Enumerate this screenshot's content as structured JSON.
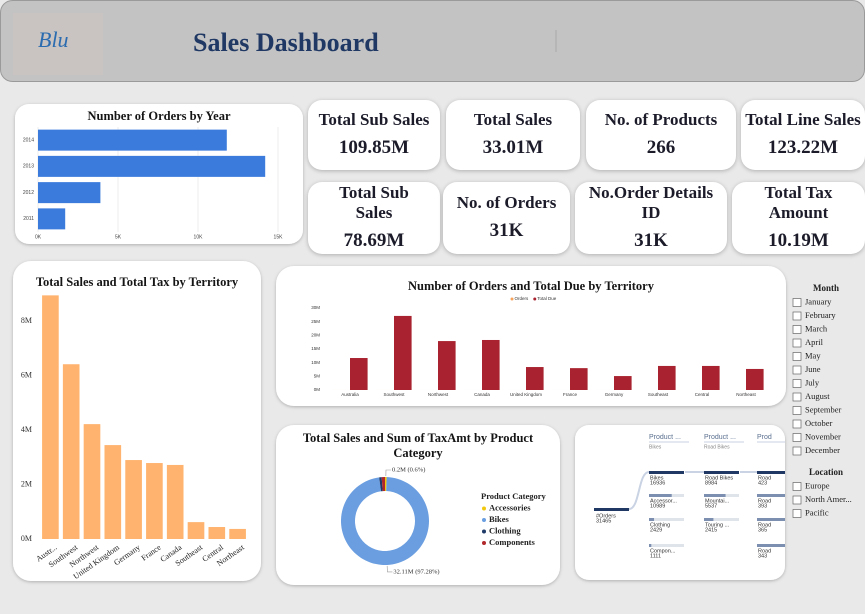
{
  "header": {
    "logo": "Blu",
    "title": "Sales Dashboard"
  },
  "kpis": [
    {
      "label": "Total Sub Sales",
      "value": "109.85M"
    },
    {
      "label": "Total Sales",
      "value": "33.01M"
    },
    {
      "label": "No. of Products",
      "value": "266"
    },
    {
      "label": "Total Line Sales",
      "value": "123.22M"
    },
    {
      "label": "Total Sub Sales",
      "value": "78.69M"
    },
    {
      "label": "No. of Orders",
      "value": "31K"
    },
    {
      "label": "No.Order Details ID",
      "value": "31K"
    },
    {
      "label": "Total Tax Amount",
      "value": "10.19M"
    }
  ],
  "chart_data": [
    {
      "type": "hbar",
      "title": "Number of Orders by Year",
      "categories": [
        "2014",
        "2013",
        "2012",
        "2011"
      ],
      "values": [
        11800,
        14200,
        3900,
        1700
      ],
      "color": "#3b7bdb",
      "xlim": [
        0,
        15000
      ],
      "xticks": [
        {
          "value": 0,
          "label": "0K"
        },
        {
          "value": 5000,
          "label": "5K"
        },
        {
          "value": 10000,
          "label": "10K"
        },
        {
          "value": 15000,
          "label": "15K"
        }
      ],
      "grid": true
    },
    {
      "type": "bar",
      "title": "Total Sales and Total Tax by Territory",
      "categories": [
        "Austr...",
        "Southwest",
        "Northwest",
        "United Kingdom",
        "Germany",
        "France",
        "Canada",
        "Southeast",
        "Central",
        "Northeast"
      ],
      "values": [
        8.95,
        6.42,
        4.22,
        3.45,
        2.9,
        2.79,
        2.72,
        0.62,
        0.44,
        0.37
      ],
      "color": "#ffb36e",
      "ylim": [
        0,
        9
      ],
      "yticks": [
        {
          "value": 0,
          "label": "0M"
        },
        {
          "value": 2,
          "label": "2M"
        },
        {
          "value": 4,
          "label": "4M"
        },
        {
          "value": 6,
          "label": "6M"
        },
        {
          "value": 8,
          "label": "8M"
        }
      ],
      "grid": false
    },
    {
      "type": "bar",
      "title": "Number of Orders and Total Due by Territory",
      "categories": [
        "Australia",
        "Southwest",
        "Northwest",
        "Canada",
        "United Kingdom",
        "France",
        "Germany",
        "Southeast",
        "Central",
        "Northeast"
      ],
      "series": [
        {
          "name": "Orders",
          "color": "#f7a35c",
          "values": [
            0.0068,
            0.0062,
            0.0046,
            0.0041,
            0.0032,
            0.0027,
            0.0026,
            0.0005,
            0.0004,
            0.0004
          ]
        },
        {
          "name": "Total Due",
          "color": "#a8232f",
          "values": [
            11.7,
            27.1,
            17.9,
            18.3,
            8.4,
            8.0,
            5.1,
            8.8,
            8.8,
            7.7
          ]
        }
      ],
      "ylim": [
        0,
        30
      ],
      "yticks": [
        {
          "value": 0,
          "label": "0M"
        },
        {
          "value": 5,
          "label": "5M"
        },
        {
          "value": 10,
          "label": "10M"
        },
        {
          "value": 15,
          "label": "15M"
        },
        {
          "value": 20,
          "label": "20M"
        },
        {
          "value": 25,
          "label": "25M"
        },
        {
          "value": 30,
          "label": "30M"
        }
      ],
      "grid": false,
      "legend": "top"
    },
    {
      "type": "donut",
      "title": "Total Sales and Sum of TaxAmt by Product Category",
      "legend_title": "Product Category",
      "categories": [
        "Accessories",
        "Bikes",
        "Clothing",
        "Components"
      ],
      "values": [
        0.2,
        32.11,
        0.3,
        0.4
      ],
      "value_labels": [
        "0.2M (0.6%)",
        "32.11M (97.28%)",
        null,
        null
      ],
      "colors": [
        "#f2c80f",
        "#6a9ee0",
        "#1f3a68",
        "#b0282c"
      ],
      "legend": "right"
    }
  ],
  "decomposition_tree": {
    "root": {
      "name": "#Orders",
      "value": 31465
    },
    "columns": [
      {
        "header": "Product ...",
        "selected": "Bikes",
        "nodes": [
          {
            "name": "Bikes",
            "value": 16936
          },
          {
            "name": "Accessor...",
            "value": 10989
          },
          {
            "name": "Clothing",
            "value": 2429
          },
          {
            "name": "Compon...",
            "value": 1111
          }
        ]
      },
      {
        "header": "Product ...",
        "selected": "Road Bikes",
        "nodes": [
          {
            "name": "Road Bikes",
            "value": 8984
          },
          {
            "name": "Mountai...",
            "value": 5537
          },
          {
            "name": "Touring ...",
            "value": 2415
          }
        ]
      },
      {
        "header": "Prod",
        "nodes": [
          {
            "name": "Road",
            "value": 423
          },
          {
            "name": "Road",
            "value": 393
          },
          {
            "name": "Road",
            "value": 365
          },
          {
            "name": "Road",
            "value": 343
          }
        ]
      }
    ]
  },
  "slicers": [
    {
      "title": "Month",
      "items": [
        "January",
        "February",
        "March",
        "April",
        "May",
        "June",
        "July",
        "August",
        "September",
        "October",
        "November",
        "December"
      ]
    },
    {
      "title": "Location",
      "items": [
        "Europe",
        "North Amer...",
        "Pacific"
      ]
    }
  ]
}
